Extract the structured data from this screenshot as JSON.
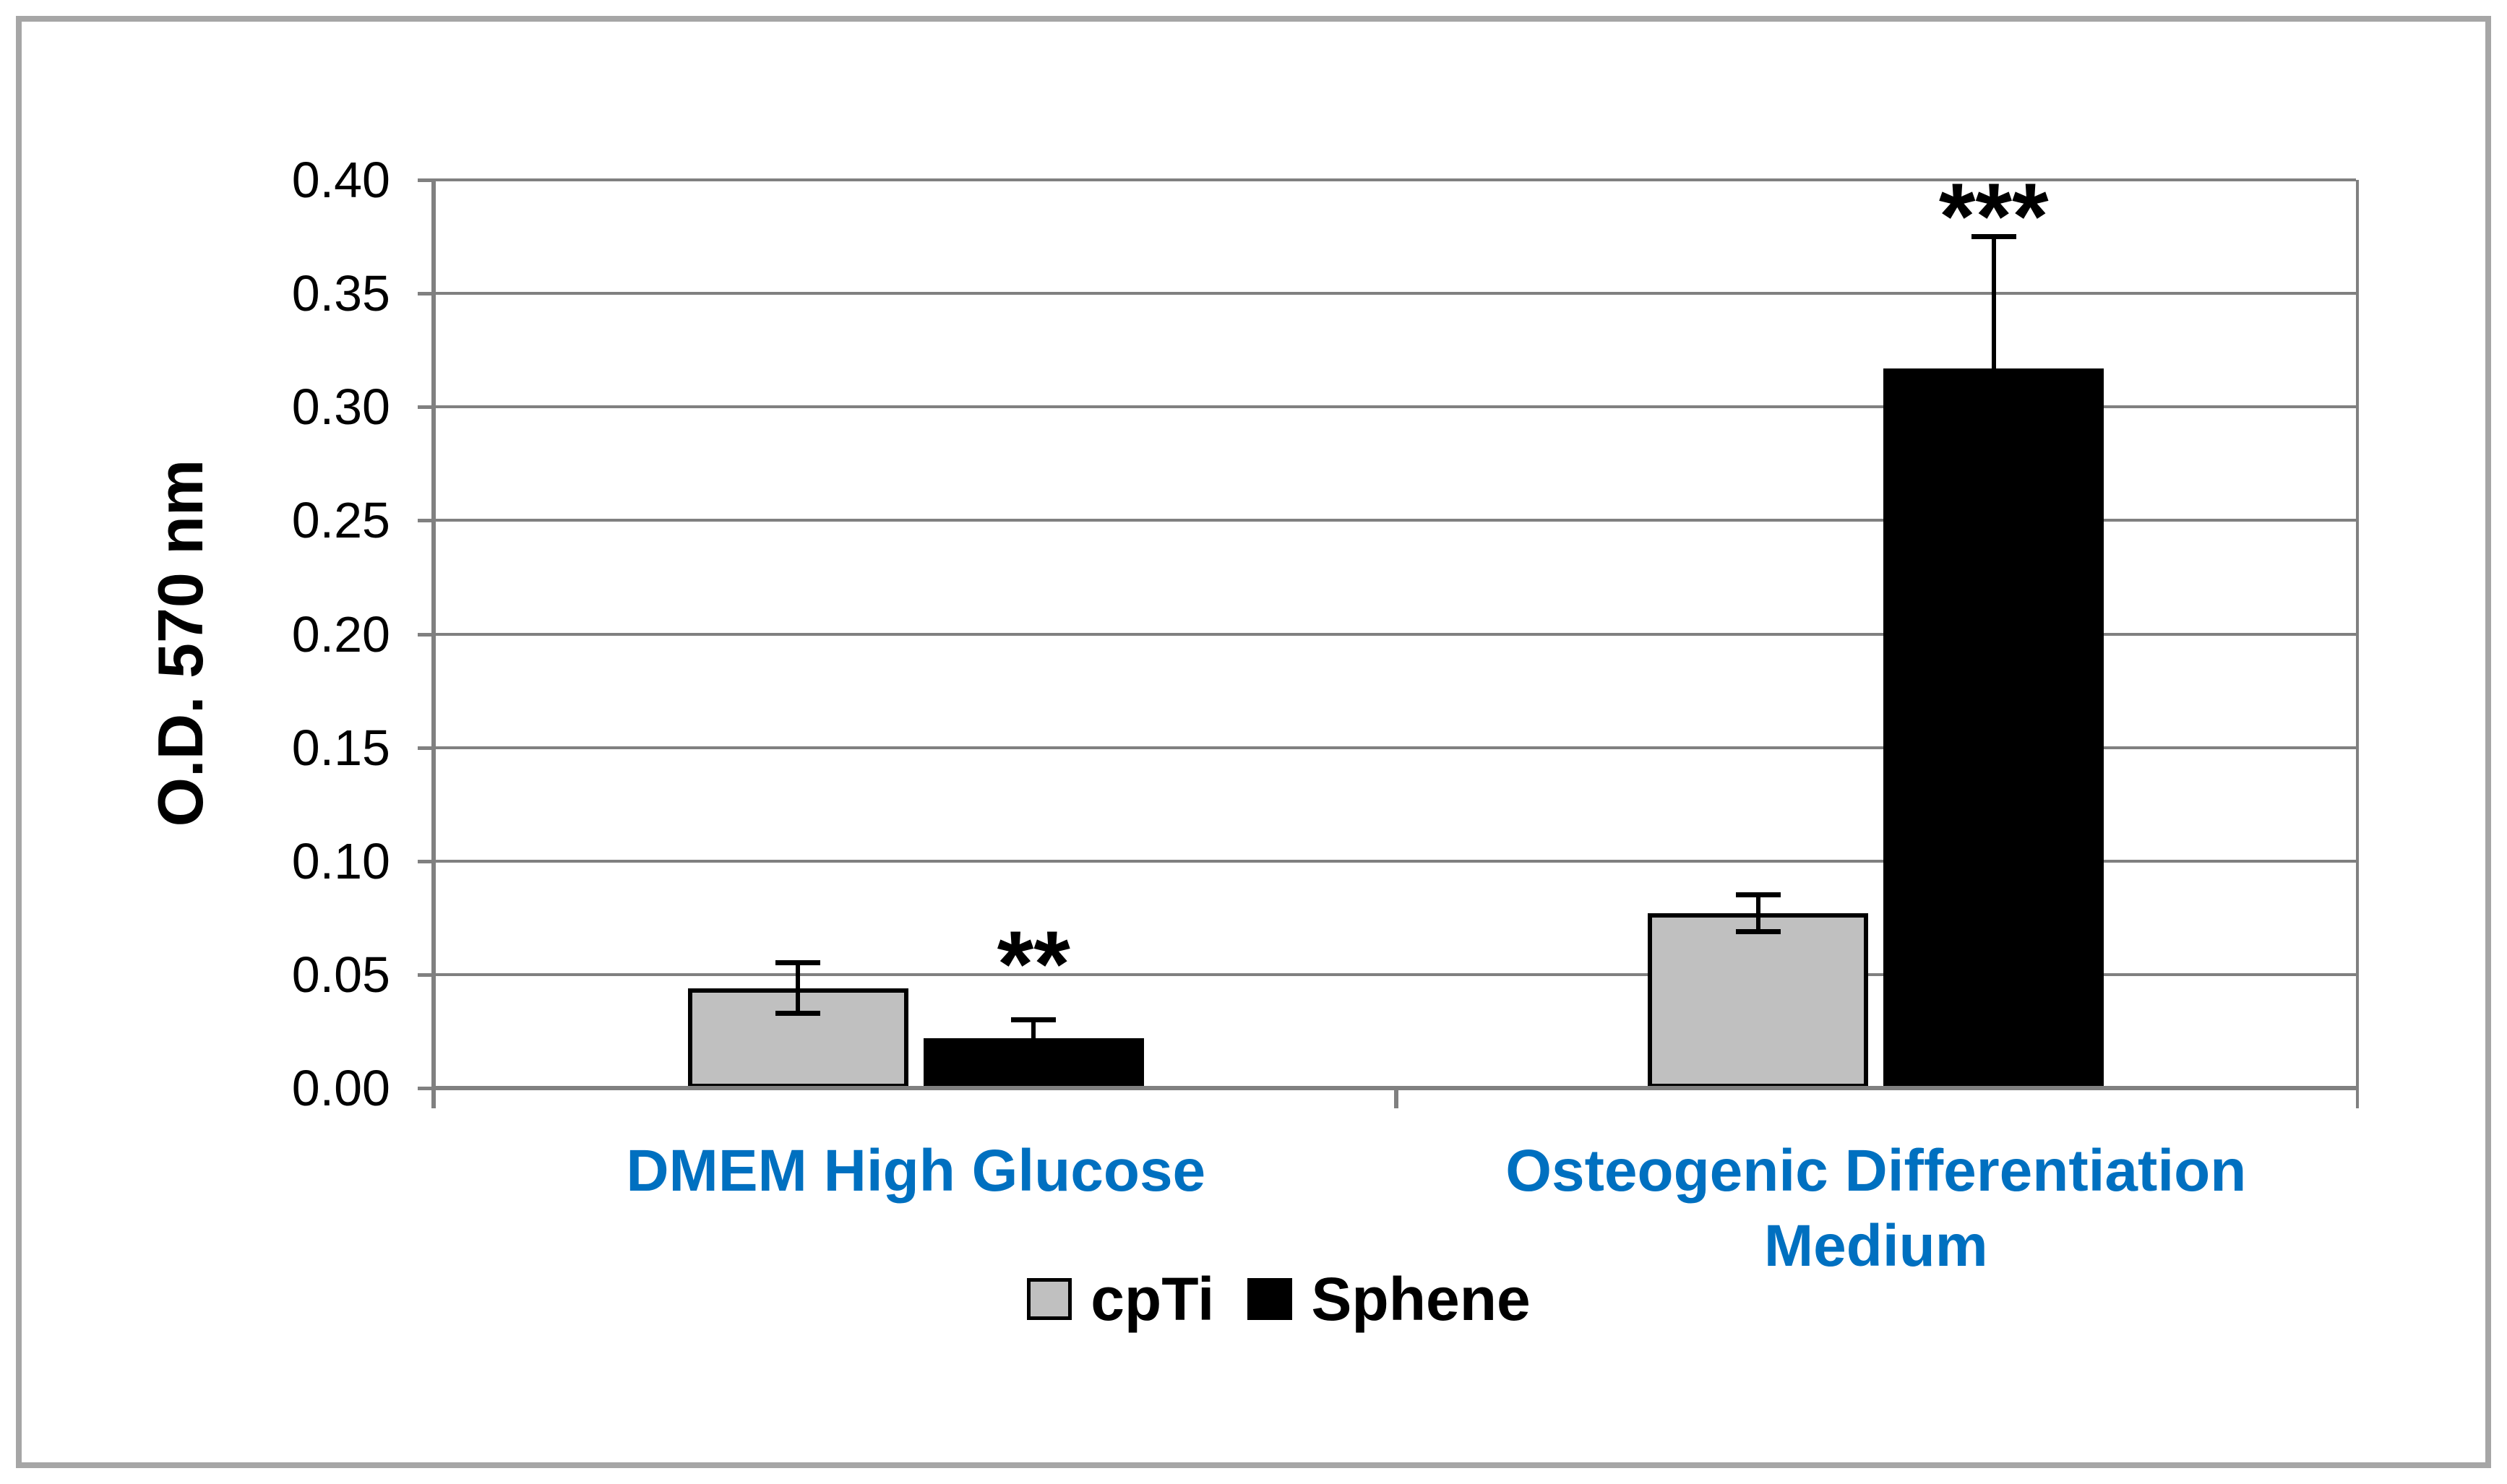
{
  "chart_data": {
    "type": "bar",
    "title": "",
    "ylabel": "O.D. 570 nm",
    "xlabel": "",
    "ylim": [
      0,
      0.4
    ],
    "ytick_step": 0.05,
    "ytick_labels": [
      "0.40",
      "0.35",
      "0.30",
      "0.25",
      "0.20",
      "0.15",
      "0.10",
      "0.05",
      "0.00"
    ],
    "grid": true,
    "legend_position": "bottom-center",
    "categories": [
      "DMEM High Glucose",
      "Osteogenic Differentiation Medium"
    ],
    "series": [
      {
        "name": "cpTi",
        "color": "#C0C0C0",
        "border_color": "#000000",
        "values": [
          0.044,
          0.077
        ],
        "errors": [
          0.011,
          0.008
        ],
        "error_caps": "both"
      },
      {
        "name": "Sphene",
        "color": "#000000",
        "border_color": "#000000",
        "values": [
          0.022,
          0.317
        ],
        "errors": [
          0.008,
          0.058
        ],
        "error_caps": "top"
      }
    ],
    "annotations": [
      {
        "text": "**",
        "category_index": 0,
        "series_name": "Sphene"
      },
      {
        "text": "***",
        "category_index": 1,
        "series_name": "Sphene"
      }
    ]
  },
  "colors": {
    "category_label": "#0070C0",
    "text": "#000000",
    "gridline": "#808080",
    "axis": "#808080",
    "error_bar": "#000000",
    "figure_border": "#A6A6A6",
    "background": "#FFFFFF"
  }
}
